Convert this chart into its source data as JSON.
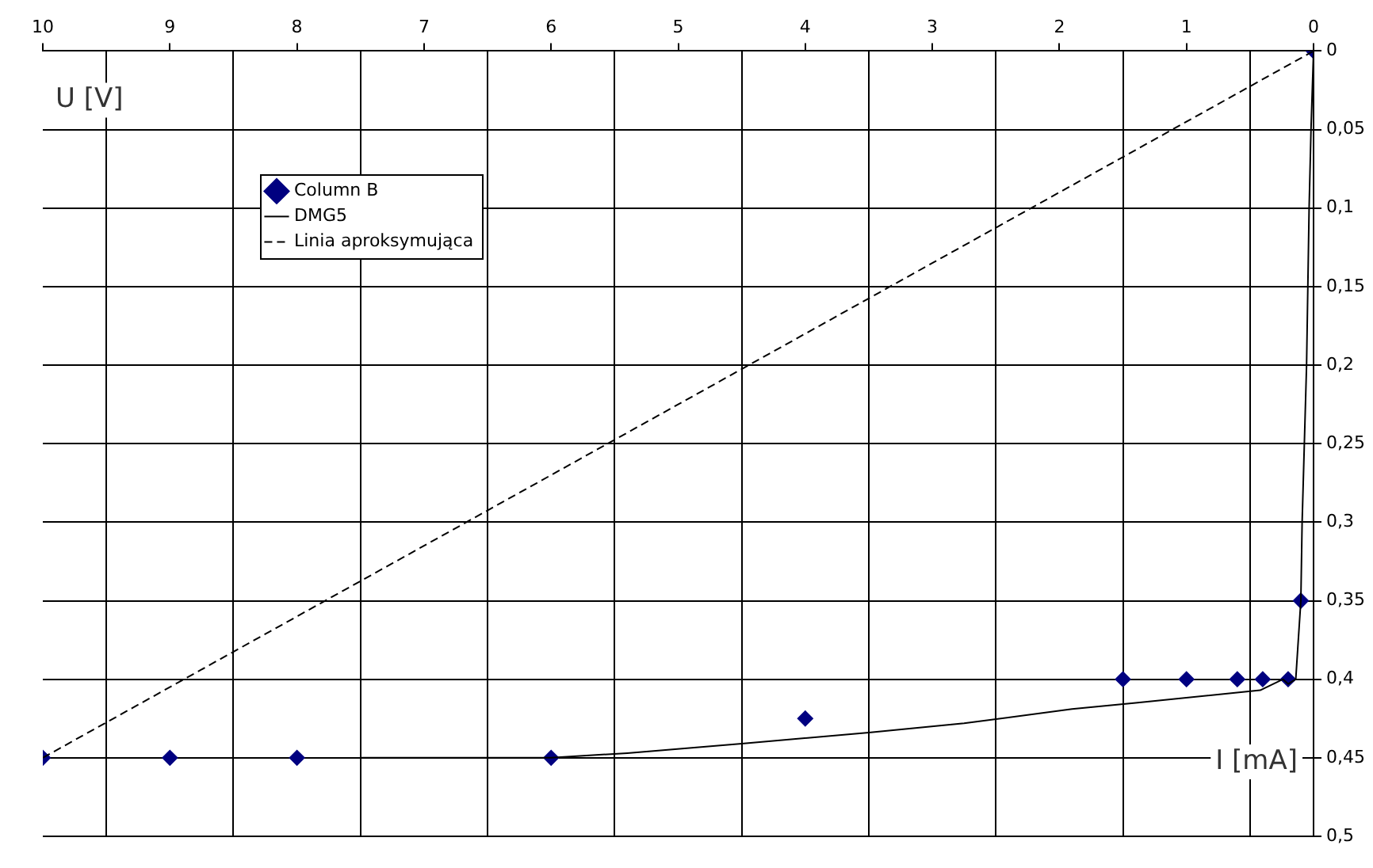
{
  "chart_data": {
    "type": "scatter",
    "xlabel": "I [mA]",
    "ylabel": "U [V]",
    "xlim": [
      10,
      0
    ],
    "ylim": [
      0.5,
      0
    ],
    "xticks": [
      10,
      {
        "value": 9.5,
        "label": null
      },
      9,
      {
        "value": 8.5,
        "label": null
      },
      8,
      {
        "value": 7.5,
        "label": null
      },
      7,
      {
        "value": 6.5,
        "label": null
      },
      6,
      {
        "value": 5.5,
        "label": null
      },
      5,
      {
        "value": 4.5,
        "label": null
      },
      4,
      {
        "value": 3.5,
        "label": null
      },
      3,
      {
        "value": 2.5,
        "label": null
      },
      2,
      {
        "value": 1.5,
        "label": null
      },
      1,
      {
        "value": 0.5,
        "label": null
      },
      0
    ],
    "yticks": [
      0,
      {
        "value": 0.05,
        "label": "0,05"
      },
      {
        "value": 0.1,
        "label": "0,1"
      },
      {
        "value": 0.15,
        "label": "0,15"
      },
      {
        "value": 0.2,
        "label": "0,2"
      },
      {
        "value": 0.25,
        "label": "0,25"
      },
      {
        "value": 0.3,
        "label": "0,3"
      },
      {
        "value": 0.35,
        "label": "0,35"
      },
      {
        "value": 0.4,
        "label": "0,4"
      },
      {
        "value": 0.45,
        "label": "0,45"
      },
      {
        "value": 0.5,
        "label": "0,5"
      }
    ],
    "grid": true,
    "legend": "top left",
    "series": [
      {
        "name": "Column B",
        "type": "scatter",
        "color": "#000080",
        "marker": "diamond",
        "x": [
          10,
          9,
          8,
          6,
          4,
          1.5,
          1,
          0.6,
          0.4,
          0.2,
          0.1,
          0
        ],
        "values": [
          0.45,
          0.45,
          0.45,
          0.45,
          0.425,
          0.4,
          0.4,
          0.4,
          0.4,
          0.4,
          0.35,
          0
        ]
      },
      {
        "name": "DMG5",
        "type": "line",
        "color": "#000000",
        "marker": "none",
        "line_style": "solid",
        "x": [
          7.5,
          6,
          5.4,
          4.5,
          3.5,
          2.75,
          1.9,
          1.4,
          0.42,
          0.24,
          0.2,
          0.14,
          0.1,
          0.09,
          0.055,
          0.035,
          0.02,
          0
        ],
        "values": [
          0.45,
          0.45,
          0.447,
          0.441,
          0.434,
          0.428,
          0.419,
          0.415,
          0.407,
          0.4,
          0.403,
          0.4,
          0.35,
          0.3,
          0.2,
          0.1,
          0.05,
          0
        ]
      },
      {
        "name": "Linia aproksymująca",
        "type": "line",
        "color": "#000000",
        "marker": "none",
        "line_style": "dashed",
        "x": [
          10,
          0
        ],
        "values": [
          0.45,
          0
        ]
      }
    ]
  }
}
